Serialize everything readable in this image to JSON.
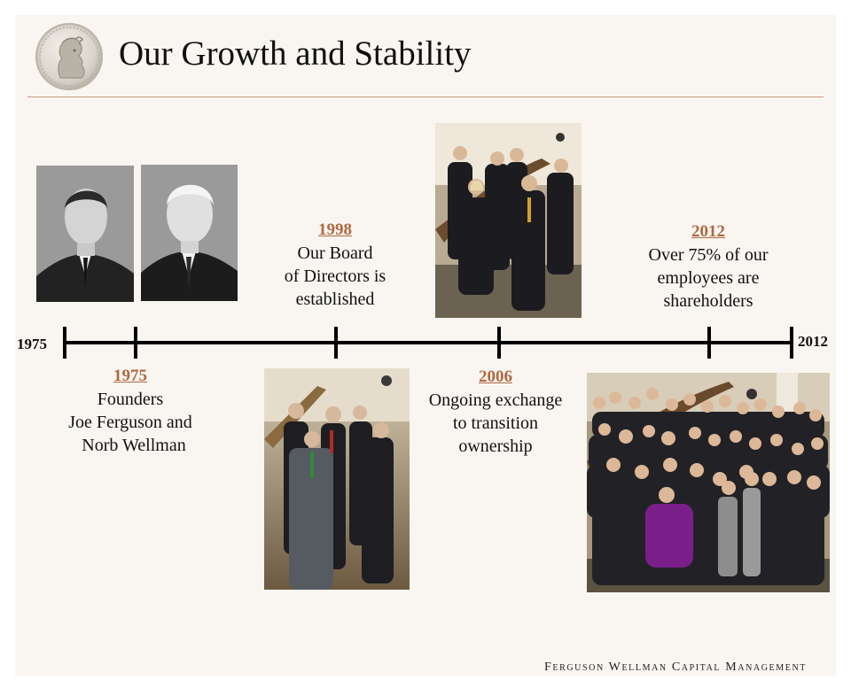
{
  "header": {
    "title": "Our Growth and Stability",
    "logo_icon": "roman-coin-portrait-icon"
  },
  "timeline": {
    "start_label": "1975",
    "end_label": "2012",
    "events": [
      {
        "year": "1975",
        "lines": [
          "Founders",
          "Joe Ferguson and",
          "Norb Wellman"
        ]
      },
      {
        "year": "1998",
        "lines": [
          "Our Board",
          "of Directors is",
          "established"
        ]
      },
      {
        "year": "2006",
        "lines": [
          "Ongoing exchange",
          "to transition",
          "ownership"
        ]
      },
      {
        "year": "2012",
        "lines": [
          "Over 75% of our",
          "employees are",
          "shareholders"
        ]
      }
    ]
  },
  "footer": {
    "company": "Ferguson Wellman Capital Management"
  },
  "colors": {
    "accent": "#b06840",
    "rule": "#c89a80",
    "background": "#f9f6f1"
  }
}
